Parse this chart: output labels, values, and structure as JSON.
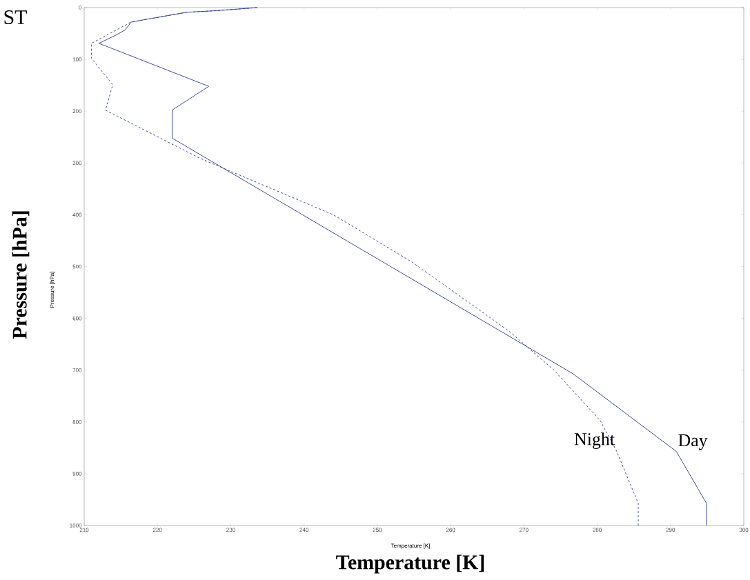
{
  "chart_data": {
    "type": "line",
    "xlabel": "Temperature [K]",
    "ylabel": "Pressure [hPa]",
    "annotations": [
      "ST",
      "Temperature [K]",
      "Pressure [hPa]"
    ],
    "xlim": [
      210,
      300
    ],
    "xticks": [
      210,
      220,
      230,
      240,
      250,
      260,
      270,
      280,
      290,
      300
    ],
    "ylim": [
      1000,
      0
    ],
    "yticks": [
      0,
      100,
      200,
      300,
      400,
      500,
      600,
      700,
      800,
      900,
      1000
    ],
    "grid": false,
    "marker": "none",
    "series": [
      {
        "name": "Day",
        "color": "#2b3a9a",
        "line_style": "solid",
        "x": [
          233.6,
          228,
          224,
          216.4,
          215.6,
          214.5,
          212,
          227,
          222,
          222,
          276.7,
          290.8,
          294.9,
          294.9
        ],
        "values": [
          0,
          6,
          9,
          28,
          43,
          52,
          69,
          152,
          198,
          252,
          707,
          857,
          957,
          1000
        ]
      },
      {
        "name": "Night",
        "color": "#2b3a9a",
        "line_style": "dashed",
        "x": [
          233.6,
          228,
          224,
          216.4,
          211,
          211,
          213.9,
          212.9,
          225.8,
          244,
          254.7,
          268,
          274.1,
          280.4,
          282.6,
          285.6,
          285.6
        ],
        "values": [
          0,
          6,
          9,
          28,
          69,
          98,
          149,
          198,
          291,
          400,
          491,
          625,
          700,
          797,
          855,
          957,
          1000
        ]
      }
    ]
  }
}
